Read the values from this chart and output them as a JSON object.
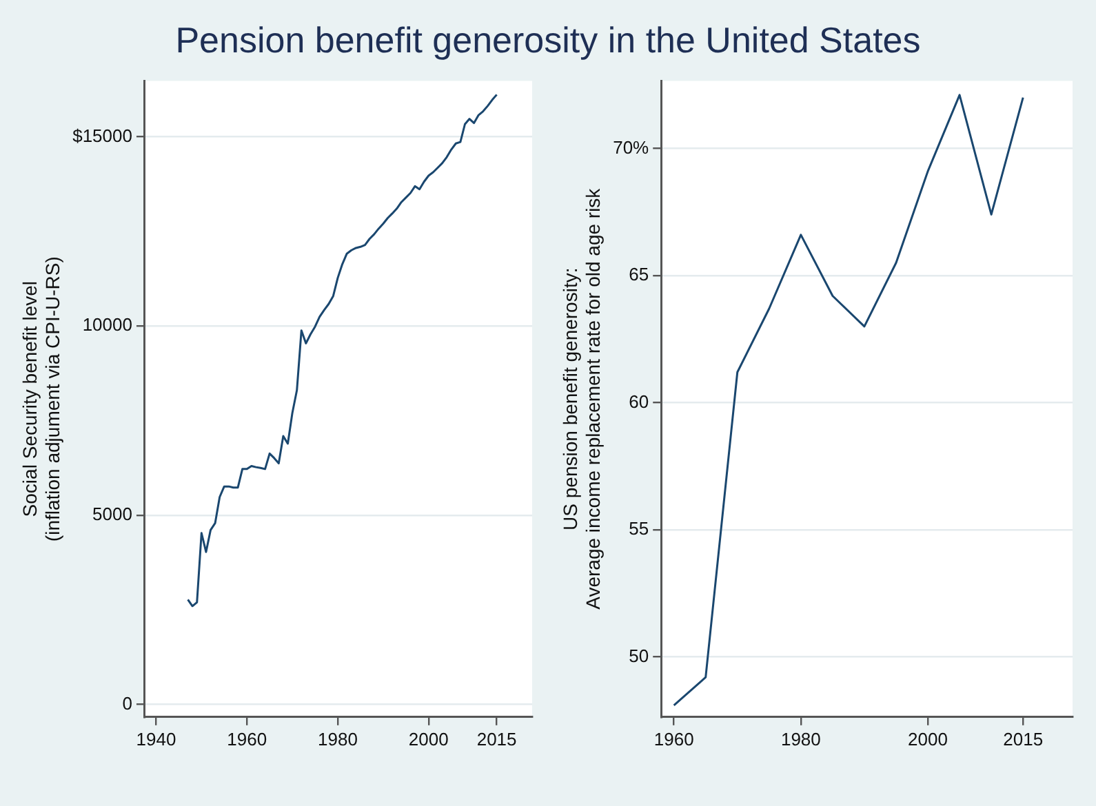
{
  "chart_data": [
    {
      "type": "line",
      "title": "Pension benefit generosity in the United States",
      "ylabel": "Social Security benefit level\n(inflation adjument via CPI-U-RS)",
      "x": [
        1947,
        1948,
        1949,
        1950,
        1951,
        1952,
        1953,
        1954,
        1955,
        1956,
        1957,
        1958,
        1959,
        1960,
        1961,
        1962,
        1963,
        1964,
        1965,
        1966,
        1967,
        1968,
        1969,
        1970,
        1971,
        1972,
        1973,
        1974,
        1975,
        1976,
        1977,
        1978,
        1979,
        1980,
        1981,
        1982,
        1983,
        1984,
        1985,
        1986,
        1987,
        1988,
        1989,
        1990,
        1991,
        1992,
        1993,
        1994,
        1995,
        1996,
        1997,
        1998,
        1999,
        2000,
        2001,
        2002,
        2003,
        2004,
        2005,
        2006,
        2007,
        2008,
        2009,
        2010,
        2011,
        2012,
        2013,
        2014,
        2015
      ],
      "series": [
        {
          "color": "#1a476f",
          "values": [
            2770,
            2600,
            2700,
            4530,
            4030,
            4610,
            4790,
            5480,
            5760,
            5760,
            5730,
            5730,
            6220,
            6220,
            6300,
            6270,
            6250,
            6220,
            6630,
            6510,
            6370,
            7090,
            6890,
            7700,
            8300,
            9880,
            9540,
            9780,
            9980,
            10240,
            10420,
            10580,
            10790,
            11270,
            11630,
            11910,
            12000,
            12060,
            12090,
            12140,
            12300,
            12420,
            12570,
            12700,
            12850,
            12970,
            13100,
            13270,
            13390,
            13510,
            13690,
            13610,
            13810,
            13970,
            14060,
            14180,
            14300,
            14460,
            14660,
            14820,
            14860,
            15330,
            15470,
            15360,
            15570,
            15670,
            15810,
            15970,
            16110
          ]
        }
      ],
      "xlim": [
        1937.5,
        2022.8
      ],
      "xticks": [
        1940,
        1960,
        1980,
        2000,
        2015
      ],
      "ylim": [
        -330,
        16470
      ],
      "yticks": [
        0,
        5000,
        10000,
        {
          "value": 15000,
          "label": "$15000"
        }
      ],
      "grid": "y",
      "legend": false
    },
    {
      "type": "line",
      "ylabel": "US pension benefit generosity:\nAverage income replacement rate for old age risk",
      "x": [
        1960,
        1965,
        1970,
        1975,
        1980,
        1985,
        1990,
        1995,
        2000,
        2005,
        2010,
        2015
      ],
      "series": [
        {
          "color": "#1a476f",
          "values": [
            48.1,
            49.2,
            61.2,
            63.7,
            66.6,
            64.2,
            63.0,
            65.5,
            69.1,
            72.1,
            67.4,
            72.0
          ]
        }
      ],
      "xlim": [
        1958,
        2022.8
      ],
      "xticks": [
        1960,
        1980,
        2000,
        2015
      ],
      "ylim": [
        47.64,
        72.65
      ],
      "yticks": [
        50,
        55,
        60,
        65,
        {
          "value": 70,
          "label": "70%"
        }
      ],
      "grid": "y",
      "legend": false
    }
  ]
}
